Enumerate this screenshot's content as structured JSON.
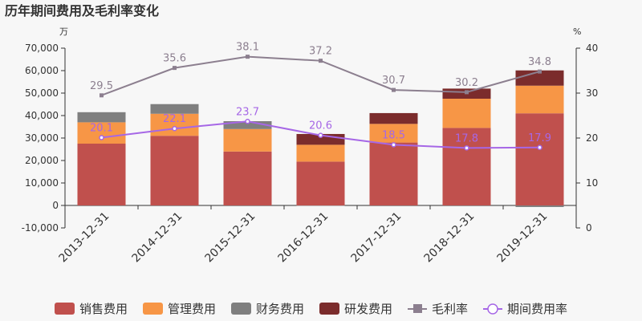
{
  "chart_data": {
    "type": "bar",
    "title": "历年期间费用及毛利率变化",
    "y_left_unit": "万",
    "y_right_unit": "%",
    "ylim_left": [
      -10000,
      70000
    ],
    "ylim_right": [
      0,
      40
    ],
    "yticks_left": [
      "70,000",
      "60,000",
      "50,000",
      "40,000",
      "30,000",
      "20,000",
      "10,000",
      "0",
      "-10,000"
    ],
    "yticks_right": [
      "40",
      "30",
      "20",
      "10",
      "0"
    ],
    "categories": [
      "2013-12-31",
      "2014-12-31",
      "2015-12-31",
      "2016-12-31",
      "2017-12-31",
      "2018-12-31",
      "2019-12-31"
    ],
    "stack_series": [
      {
        "name": "销售费用",
        "color": "#c0504d",
        "values": [
          27500,
          31000,
          24000,
          19500,
          28000,
          34500,
          41000
        ]
      },
      {
        "name": "管理费用",
        "color": "#f79646",
        "values": [
          9500,
          9800,
          10000,
          7500,
          8300,
          13000,
          12300
        ]
      },
      {
        "name": "财务费用",
        "color": "#7f7f7f",
        "values": [
          4500,
          4300,
          3500,
          -100,
          0,
          0,
          -700
        ]
      },
      {
        "name": "研发费用",
        "color": "#7b2c2c",
        "values": [
          0,
          0,
          0,
          4800,
          4800,
          4500,
          6800
        ]
      }
    ],
    "line_series": [
      {
        "name": "毛利率",
        "color": "#8c7f8f",
        "marker": "square",
        "values": [
          29.5,
          35.6,
          38.1,
          37.2,
          30.7,
          30.2,
          34.8
        ]
      },
      {
        "name": "期间费用率",
        "color": "#a667e6",
        "marker": "circle",
        "values": [
          20.1,
          22.1,
          23.7,
          20.6,
          18.5,
          17.8,
          17.9
        ]
      }
    ],
    "grid": false,
    "legend_position": "bottom"
  }
}
